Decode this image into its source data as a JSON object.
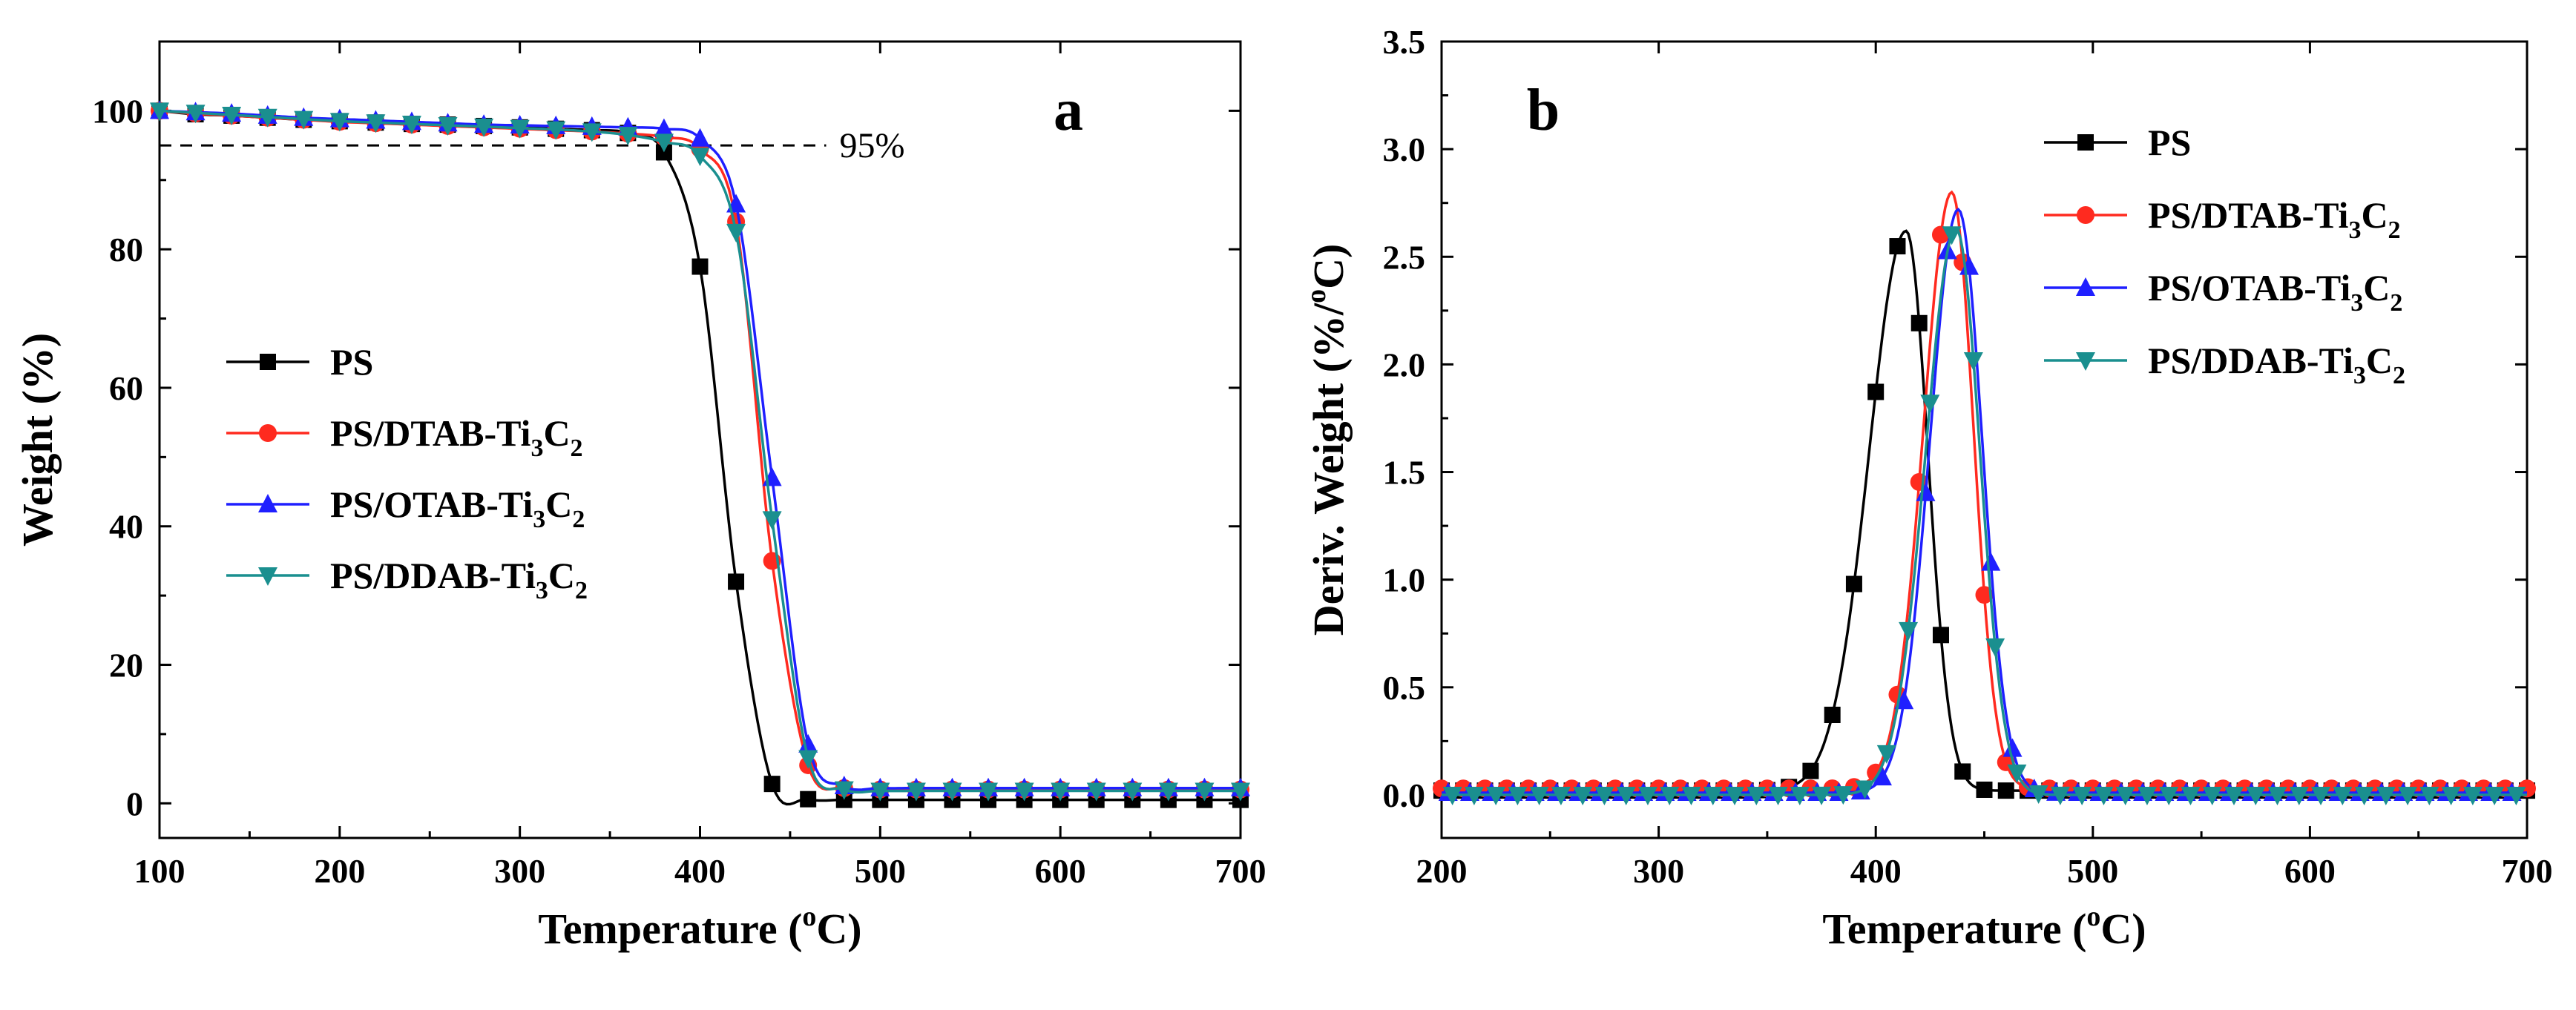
{
  "chart_data": [
    {
      "type": "line",
      "panel_label": "a",
      "xlabel_main": "Temperature (",
      "xlabel_sup": "o",
      "xlabel_tail": "C)",
      "ylabel": "Weight (%)",
      "xlim": [
        100,
        700
      ],
      "ylim": [
        -5,
        110
      ],
      "xticks": [
        100,
        200,
        300,
        400,
        500,
        600,
        700
      ],
      "yticks": [
        0,
        20,
        40,
        60,
        80,
        100
      ],
      "legend_position": "center-left",
      "annotation": {
        "text": "95%",
        "y": 95,
        "x_from": 100,
        "x_to": 470
      },
      "marker_x": [
        100,
        120,
        140,
        160,
        180,
        200,
        220,
        240,
        260,
        280,
        300,
        320,
        340,
        360,
        380,
        400,
        420,
        440,
        460,
        480,
        500,
        520,
        540,
        560,
        580,
        600,
        620,
        640,
        660,
        680,
        700
      ],
      "series": [
        {
          "name": "PS",
          "label_main": "PS",
          "label_sub1": "",
          "label_mid": "",
          "label_sub2": "",
          "color": "#000000",
          "marker": "square",
          "values": [
            100,
            99.5,
            99.3,
            99.0,
            98.7,
            98.5,
            98.3,
            98.1,
            98.0,
            97.8,
            97.6,
            97.4,
            97.2,
            96.8,
            94.0,
            77.5,
            32.0,
            2.8,
            0.6,
            0.5,
            0.5,
            0.5,
            0.5,
            0.5,
            0.5,
            0.5,
            0.5,
            0.5,
            0.5,
            0.5,
            0.5
          ]
        },
        {
          "name": "PS/DTAB-Ti3C2",
          "label_main": "PS/DTAB-Ti",
          "label_sub1": "3",
          "label_mid": "C",
          "label_sub2": "2",
          "color": "#ff2a1f",
          "marker": "circle",
          "values": [
            100,
            99.6,
            99.3,
            99.0,
            98.7,
            98.4,
            98.2,
            98.0,
            97.8,
            97.6,
            97.4,
            97.2,
            97.0,
            96.7,
            96.2,
            94.5,
            84.0,
            35.0,
            5.5,
            2.2,
            2.0,
            2.0,
            2.0,
            2.0,
            2.0,
            2.0,
            2.0,
            2.0,
            2.0,
            2.0,
            2.0
          ]
        },
        {
          "name": "PS/OTAB-Ti3C2",
          "label_main": "PS/OTAB-Ti",
          "label_sub1": "3",
          "label_mid": "C",
          "label_sub2": "2",
          "color": "#1f1fff",
          "marker": "triangle-up",
          "values": [
            100,
            99.8,
            99.6,
            99.3,
            99.0,
            98.8,
            98.6,
            98.4,
            98.2,
            98.0,
            97.9,
            97.8,
            97.7,
            97.6,
            97.4,
            96.0,
            86.5,
            47.0,
            8.5,
            2.5,
            2.2,
            2.2,
            2.2,
            2.2,
            2.2,
            2.2,
            2.2,
            2.2,
            2.2,
            2.2,
            2.2
          ]
        },
        {
          "name": "PS/DDAB-Ti3C2",
          "label_main": "PS/DDAB-Ti",
          "label_sub1": "3",
          "label_mid": "C",
          "label_sub2": "2",
          "color": "#1a8f8f",
          "marker": "triangle-down",
          "values": [
            100,
            99.7,
            99.4,
            99.1,
            98.8,
            98.5,
            98.3,
            98.1,
            97.9,
            97.7,
            97.5,
            97.3,
            97.0,
            96.5,
            95.5,
            93.5,
            82.5,
            41.0,
            6.5,
            2.0,
            1.8,
            1.8,
            1.8,
            1.8,
            1.8,
            1.8,
            1.8,
            1.8,
            1.8,
            1.8,
            1.8
          ]
        }
      ]
    },
    {
      "type": "line",
      "panel_label": "b",
      "xlabel_main": "Temperature (",
      "xlabel_sup": "o",
      "xlabel_tail": "C)",
      "ylabel_main": "Deriv. Weight (%/",
      "ylabel_sup": "o",
      "ylabel_tail": "C)",
      "xlim": [
        200,
        700
      ],
      "ylim": [
        -0.2,
        3.5
      ],
      "xticks": [
        200,
        300,
        400,
        500,
        600,
        700
      ],
      "yticks": [
        0.0,
        0.5,
        1.0,
        1.5,
        2.0,
        2.5,
        3.0,
        3.5
      ],
      "ytick_labels": [
        "0.0",
        "0.5",
        "1.0",
        "1.5",
        "2.0",
        "2.5",
        "3.0",
        "3.5"
      ],
      "legend_position": "top-right",
      "series": [
        {
          "name": "PS",
          "label_main": "PS",
          "label_sub1": "",
          "label_mid": "",
          "label_sub2": "",
          "color": "#000000",
          "marker": "square",
          "baseline": 0.02,
          "peak_x": 414,
          "peak_y": 2.62,
          "sigma_left": 17,
          "sigma_right": 10,
          "marker_x": [
            200,
            210,
            220,
            230,
            240,
            250,
            260,
            270,
            280,
            290,
            300,
            310,
            320,
            330,
            340,
            350,
            360,
            370,
            380,
            390,
            400,
            410,
            420,
            430,
            440,
            450,
            460,
            470,
            480,
            490,
            500,
            510,
            520,
            530,
            540,
            550,
            560,
            570,
            580,
            590,
            600,
            610,
            620,
            630,
            640,
            650,
            660,
            670,
            680,
            690,
            700
          ]
        },
        {
          "name": "PS/DTAB-Ti3C2",
          "label_main": "PS/DTAB-Ti",
          "label_sub1": "3",
          "label_mid": "C",
          "label_sub2": "2",
          "color": "#ff2a1f",
          "marker": "circle",
          "baseline": 0.03,
          "peak_x": 435,
          "peak_y": 2.8,
          "sigma_left": 13,
          "sigma_right": 10,
          "marker_x": [
            200,
            210,
            220,
            230,
            240,
            250,
            260,
            270,
            280,
            290,
            300,
            310,
            320,
            330,
            340,
            350,
            360,
            370,
            380,
            390,
            400,
            410,
            420,
            430,
            440,
            450,
            460,
            470,
            480,
            490,
            500,
            510,
            520,
            530,
            540,
            550,
            560,
            570,
            580,
            590,
            600,
            610,
            620,
            630,
            640,
            650,
            660,
            670,
            680,
            690,
            700
          ]
        },
        {
          "name": "PS/OTAB-Ti3C2",
          "label_main": "PS/OTAB-Ti",
          "label_sub1": "3",
          "label_mid": "C",
          "label_sub2": "2",
          "color": "#1f1fff",
          "marker": "triangle-up",
          "baseline": 0.01,
          "peak_x": 438,
          "peak_y": 2.72,
          "sigma_left": 13,
          "sigma_right": 11,
          "marker_x": [
            203,
            213,
            223,
            233,
            243,
            253,
            263,
            273,
            283,
            293,
            303,
            313,
            323,
            333,
            343,
            353,
            363,
            373,
            383,
            393,
            403,
            413,
            423,
            433,
            443,
            453,
            463,
            473,
            483,
            493,
            503,
            513,
            523,
            533,
            543,
            553,
            563,
            573,
            583,
            593,
            603,
            613,
            623,
            633,
            643,
            653,
            663,
            673,
            683,
            693
          ]
        },
        {
          "name": "PS/DDAB-Ti3C2",
          "label_main": "PS/DDAB-Ti",
          "label_sub1": "3",
          "label_mid": "C",
          "label_sub2": "2",
          "color": "#1a8f8f",
          "marker": "triangle-down",
          "baseline": 0.0,
          "peak_x": 437,
          "peak_y": 2.63,
          "sigma_left": 14,
          "sigma_right": 11,
          "marker_x": [
            205,
            215,
            225,
            235,
            245,
            255,
            265,
            275,
            285,
            295,
            305,
            315,
            325,
            335,
            345,
            355,
            365,
            375,
            385,
            395,
            405,
            415,
            425,
            435,
            445,
            455,
            465,
            475,
            485,
            495,
            505,
            515,
            525,
            535,
            545,
            555,
            565,
            575,
            585,
            595,
            605,
            615,
            625,
            635,
            645,
            655,
            665,
            675,
            685,
            695
          ]
        }
      ]
    }
  ]
}
